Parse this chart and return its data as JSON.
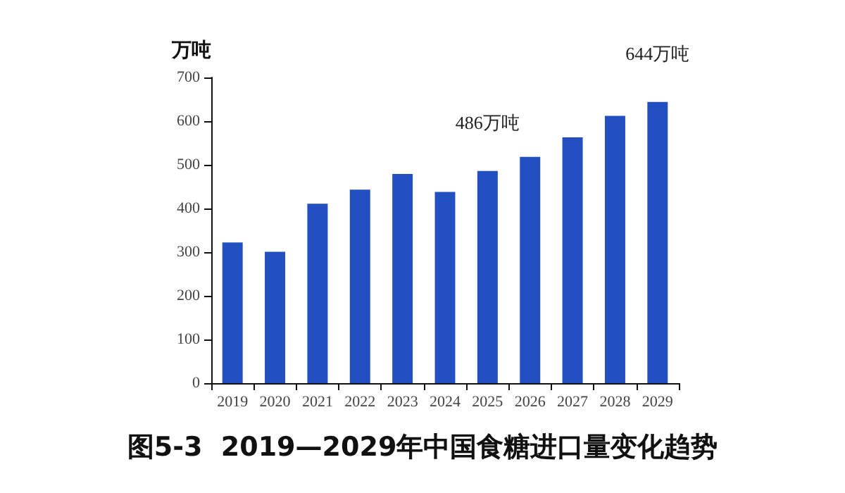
{
  "chart_data": {
    "type": "bar",
    "title": "图5-3  2019—2029年中国食糖进口量变化趋势",
    "ylabel": "万吨",
    "categories": [
      "2019",
      "2020",
      "2021",
      "2022",
      "2023",
      "2024",
      "2025",
      "2026",
      "2027",
      "2028",
      "2029"
    ],
    "values": [
      322,
      301,
      411,
      443,
      479,
      438,
      486,
      518,
      563,
      612,
      644
    ],
    "color": "#2350c0",
    "ylim": [
      0,
      700
    ],
    "yticks": [
      0,
      100,
      200,
      300,
      400,
      500,
      600,
      700
    ],
    "grid": false,
    "annotations": [
      {
        "text": "486万吨",
        "x": "2025",
        "y": 486
      },
      {
        "text": "644万吨",
        "x": "2029",
        "y": 644
      }
    ]
  }
}
